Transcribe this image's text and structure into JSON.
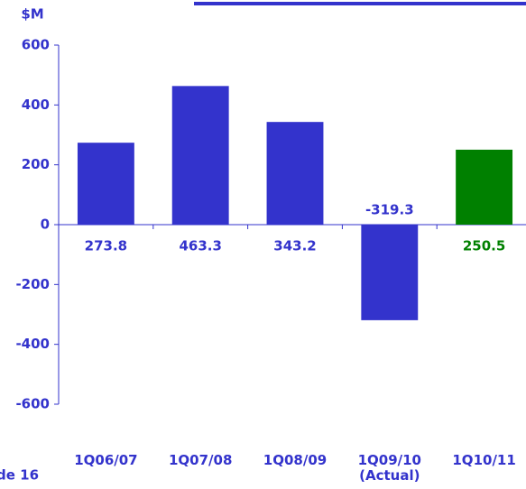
{
  "chart_data": {
    "type": "bar",
    "y_label": "$M",
    "categories": [
      "1Q06/07",
      "1Q07/08",
      "1Q08/09",
      "1Q09/10 (Actual)",
      "1Q10/11"
    ],
    "values": [
      273.8,
      463.3,
      343.2,
      -319.3,
      250.5
    ],
    "colors": [
      "#3333cc",
      "#3333cc",
      "#3333cc",
      "#3333cc",
      "#008000"
    ],
    "ylim": [
      -600,
      600
    ],
    "yticks": [
      -600,
      -400,
      -200,
      0,
      200,
      400,
      600
    ],
    "grid": false,
    "footer": "de 16"
  }
}
